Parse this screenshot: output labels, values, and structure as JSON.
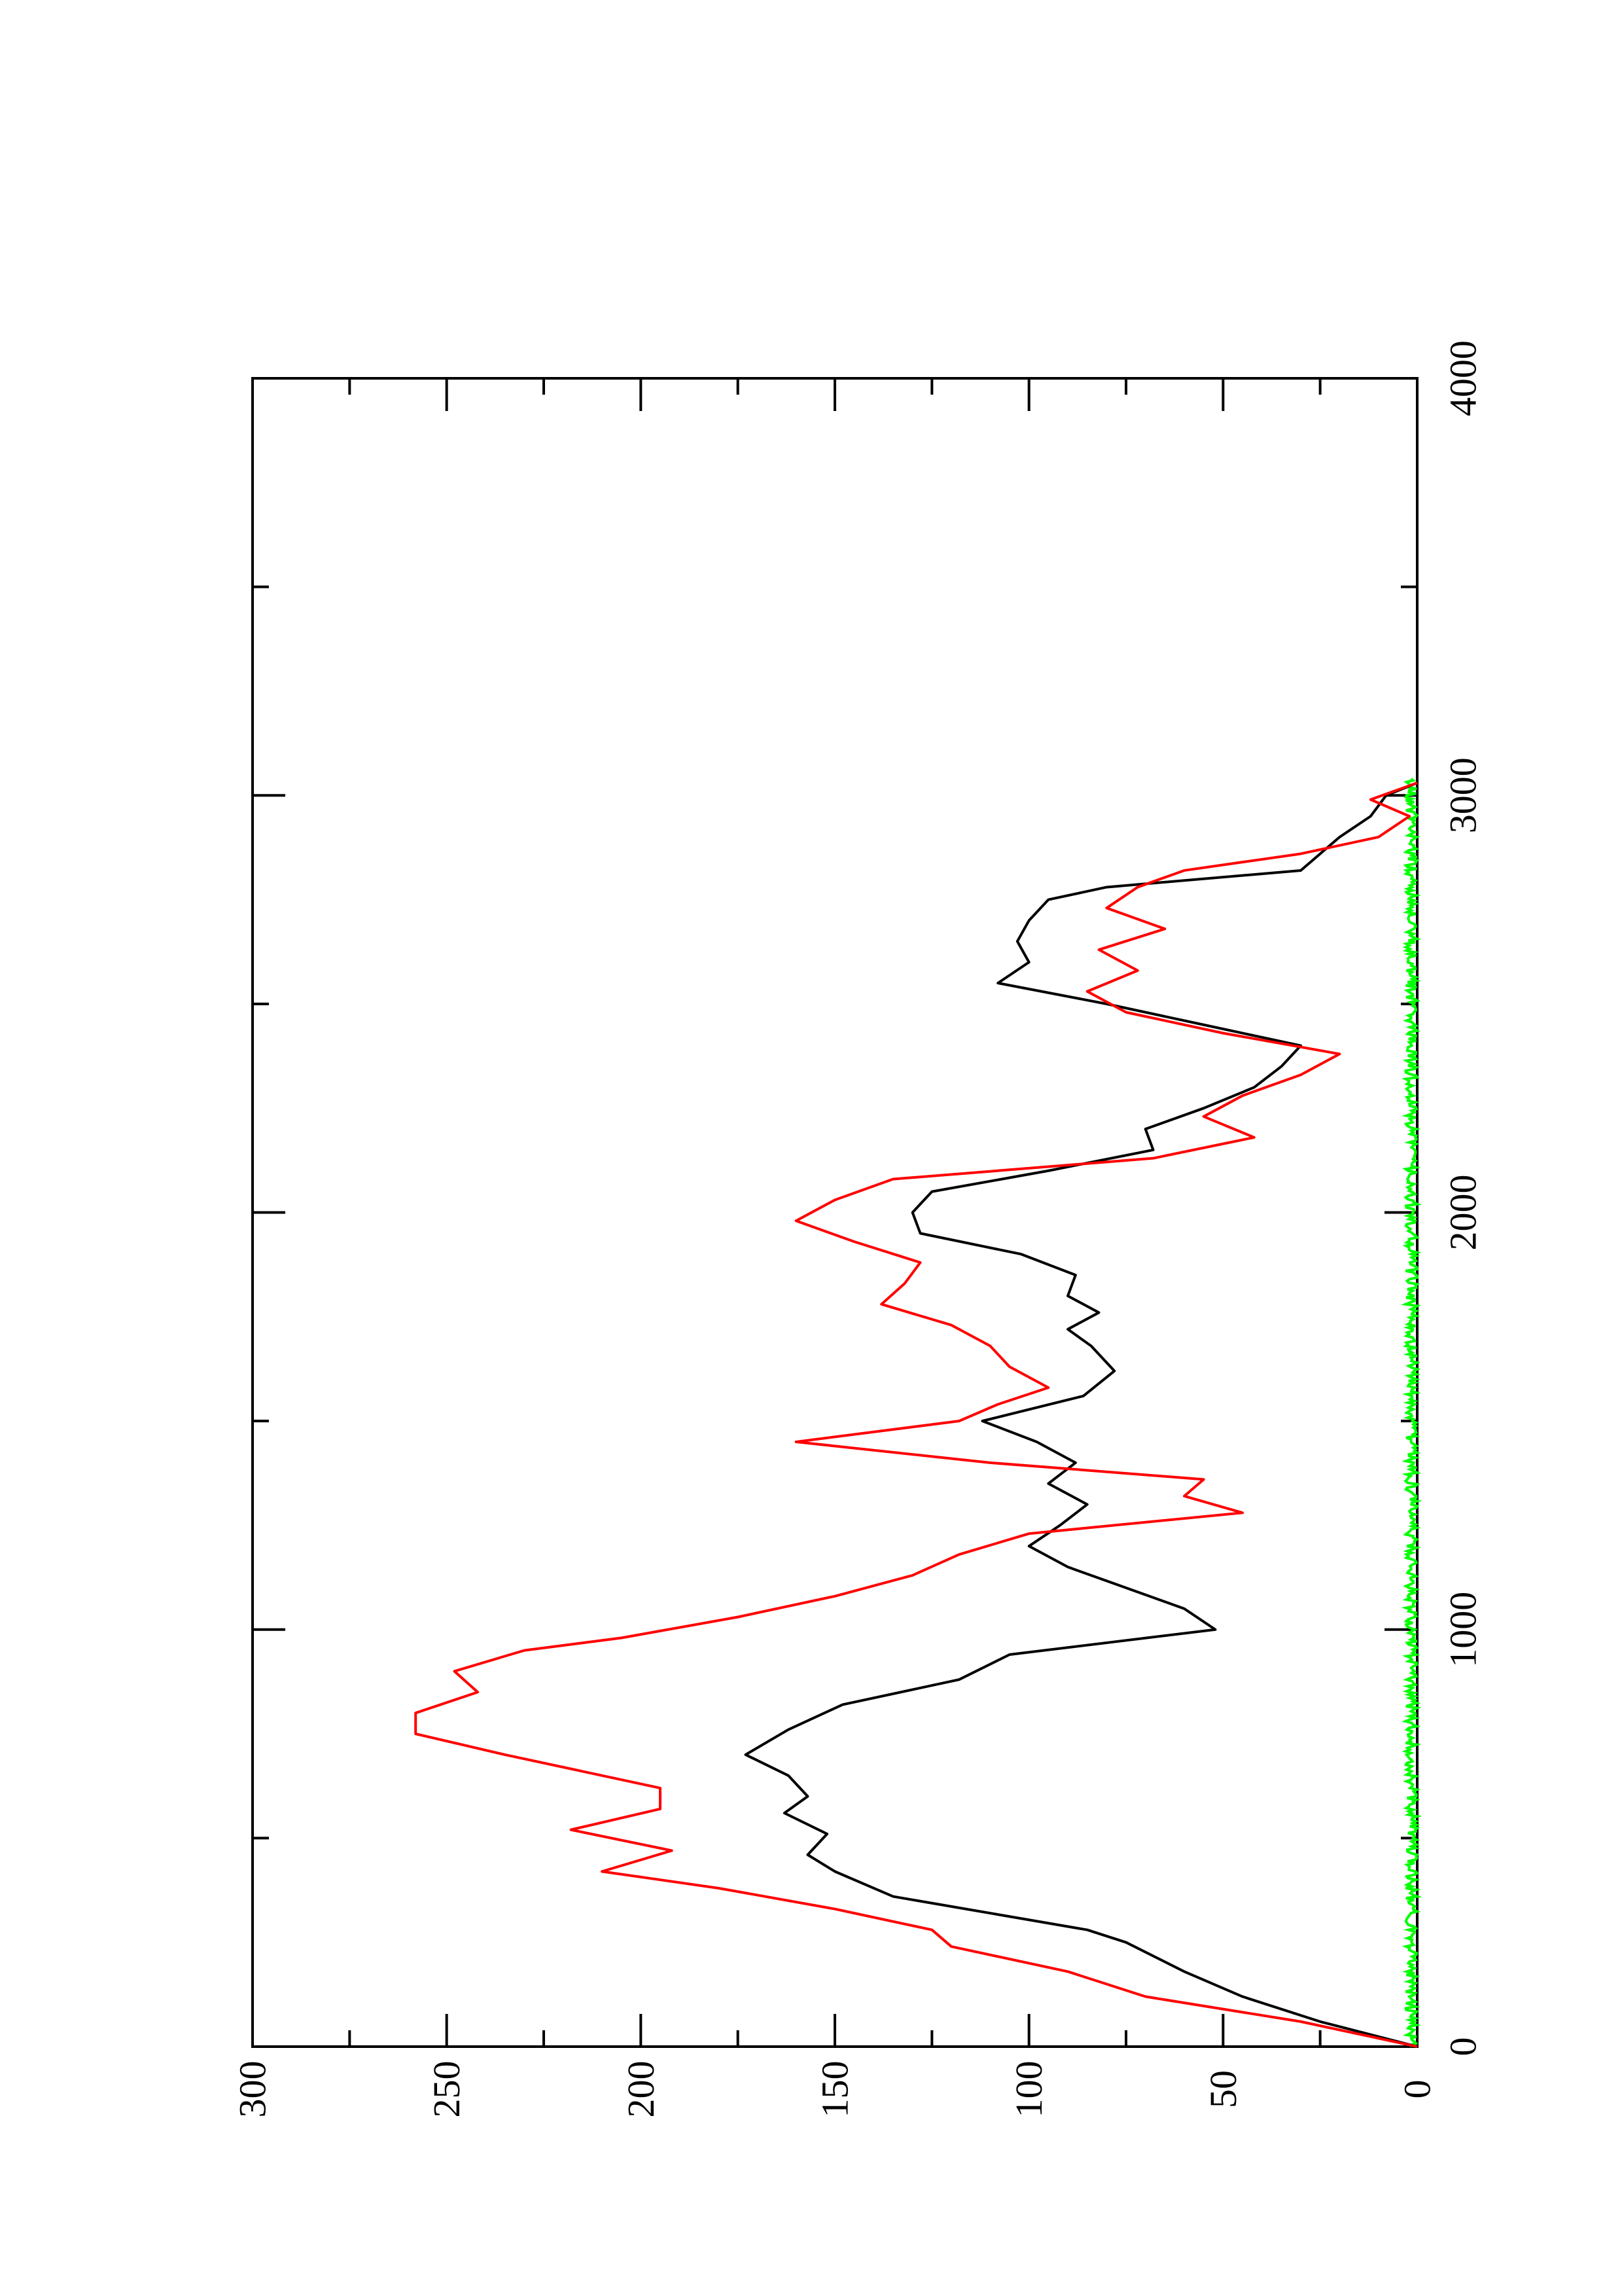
{
  "chart_data": {
    "type": "line",
    "orientation": "rotated-90-ccw",
    "x_axis": {
      "range": [
        0,
        4000
      ],
      "ticks": [
        0,
        1000,
        2000,
        3000,
        4000
      ],
      "minor_ticks": [
        500,
        1500,
        2500,
        3500
      ],
      "label": ""
    },
    "y_axis": {
      "range": [
        0,
        300
      ],
      "ticks": [
        0,
        50,
        100,
        150,
        200,
        250,
        300
      ],
      "minor_ticks": [
        25,
        75,
        125,
        175,
        225,
        275
      ],
      "label": ""
    },
    "grid": false,
    "legend": "none",
    "series": [
      {
        "color": "#000000",
        "x": [
          0,
          60,
          120,
          180,
          250,
          280,
          320,
          360,
          420,
          460,
          510,
          560,
          600,
          650,
          700,
          760,
          820,
          880,
          940,
          1000,
          1050,
          1100,
          1150,
          1200,
          1250,
          1300,
          1350,
          1400,
          1450,
          1500,
          1560,
          1620,
          1680,
          1720,
          1760,
          1800,
          1850,
          1900,
          1950,
          2000,
          2050,
          2100,
          2150,
          2200,
          2250,
          2300,
          2350,
          2400,
          2450,
          2500,
          2550,
          2600,
          2650,
          2700,
          2750,
          2780,
          2820,
          2860,
          2900,
          2950,
          3000,
          3030
        ],
        "y": [
          0,
          25,
          45,
          60,
          75,
          85,
          110,
          135,
          150,
          157,
          152,
          163,
          157,
          162,
          173,
          162,
          148,
          118,
          105,
          52,
          60,
          75,
          90,
          100,
          92,
          85,
          95,
          88,
          98,
          112,
          86,
          78,
          84,
          90,
          82,
          90,
          88,
          102,
          128,
          130,
          125,
          95,
          68,
          70,
          55,
          42,
          35,
          30,
          55,
          80,
          108,
          100,
          103,
          100,
          95,
          80,
          30,
          25,
          20,
          12,
          8,
          0
        ]
      },
      {
        "color": "#ff0000",
        "x": [
          0,
          60,
          120,
          180,
          240,
          280,
          330,
          380,
          420,
          470,
          520,
          570,
          620,
          660,
          700,
          750,
          800,
          850,
          900,
          950,
          980,
          1030,
          1080,
          1130,
          1180,
          1230,
          1280,
          1320,
          1360,
          1400,
          1450,
          1500,
          1540,
          1580,
          1630,
          1680,
          1730,
          1780,
          1830,
          1880,
          1930,
          1980,
          2030,
          2080,
          2130,
          2180,
          2230,
          2280,
          2330,
          2380,
          2430,
          2480,
          2530,
          2580,
          2630,
          2680,
          2730,
          2780,
          2820,
          2860,
          2900,
          2950,
          2990,
          3030
        ],
        "y": [
          0,
          30,
          70,
          90,
          120,
          125,
          150,
          180,
          210,
          192,
          218,
          195,
          195,
          215,
          235,
          258,
          258,
          242,
          248,
          230,
          205,
          175,
          150,
          130,
          118,
          100,
          45,
          60,
          55,
          110,
          160,
          118,
          108,
          95,
          105,
          110,
          120,
          138,
          132,
          128,
          145,
          160,
          150,
          135,
          68,
          42,
          55,
          45,
          30,
          20,
          50,
          75,
          85,
          72,
          82,
          65,
          80,
          72,
          60,
          30,
          10,
          2,
          12,
          0
        ]
      },
      {
        "color": "#00ff00",
        "x_range": [
          0,
          3040
        ],
        "y_band": [
          0,
          3
        ],
        "description_type": "noise-band"
      }
    ]
  }
}
